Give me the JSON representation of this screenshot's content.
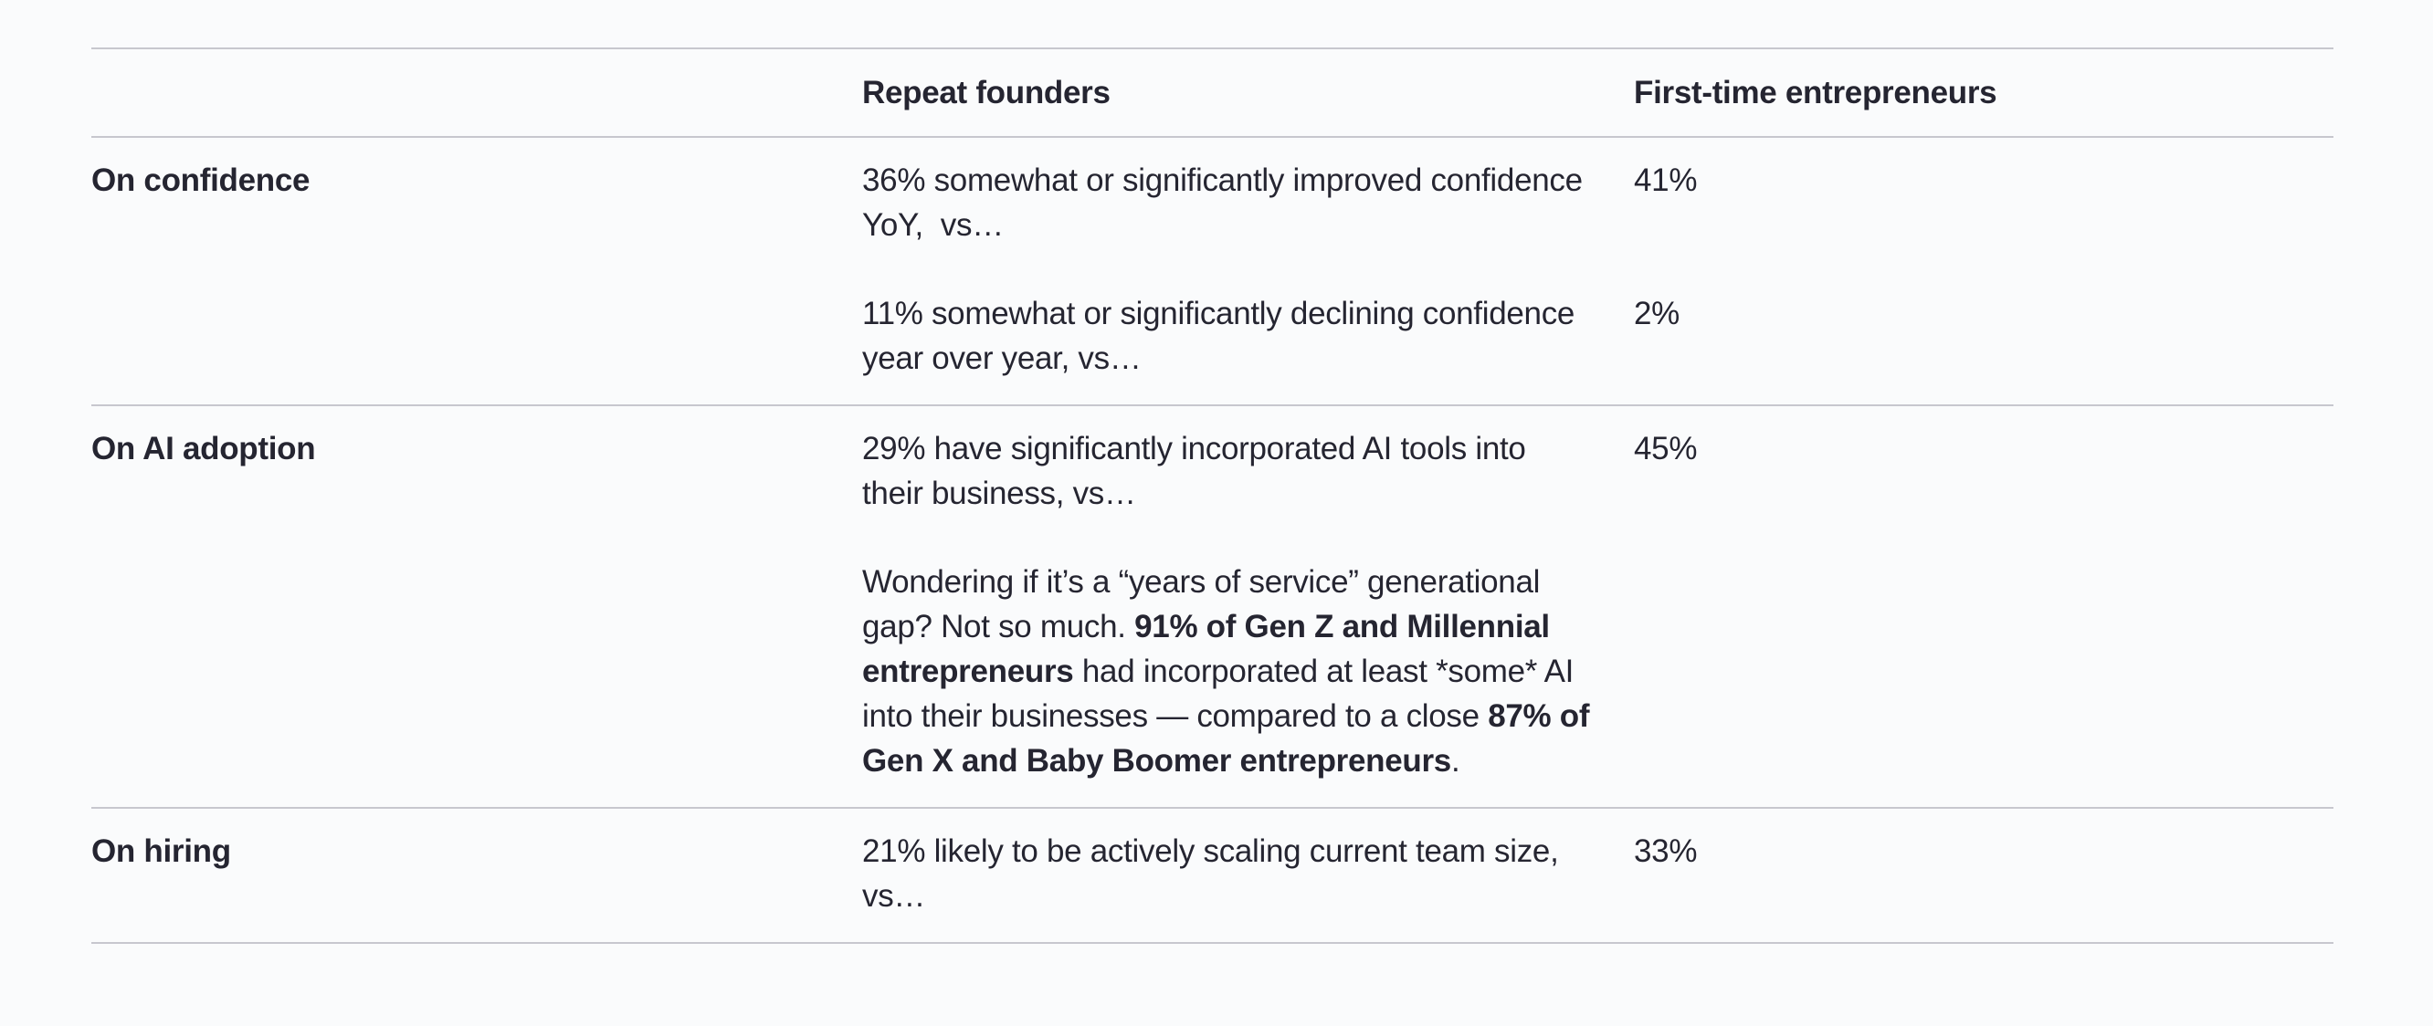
{
  "page": {
    "background": "#fafbfc",
    "rule_color": "#c7c7ce",
    "text_color": "#252531"
  },
  "table": {
    "header": {
      "col2": "Repeat founders",
      "col3": "First-time entrepreneurs"
    },
    "rows": [
      {
        "label": "On confidence",
        "items": [
          {
            "statement": "36% somewhat or significantly improved confidence YoY,  vs…",
            "value": "41%"
          },
          {
            "statement": "11% somewhat or significantly declining confidence year over year, vs…",
            "value": "2%"
          }
        ]
      },
      {
        "label": "On AI adoption",
        "items": [
          {
            "statement": "29% have significantly incorporated AI tools into their business, vs…",
            "value": "45%"
          },
          {
            "segments": {
              "pre": "Wondering if it’s a “years of service” generational gap? Not so much. ",
              "bold1": "91% of Gen Z and Millennial entrepreneurs",
              "mid": " had incorporated at least *some* AI into their businesses — compared to a close ",
              "bold2": "87% of Gen X and Baby Boomer entrepreneurs",
              "post": "."
            },
            "value": ""
          }
        ]
      },
      {
        "label": "On hiring",
        "items": [
          {
            "statement": "21% likely to be actively scaling current team size, vs…",
            "value": "33%"
          }
        ]
      }
    ]
  }
}
